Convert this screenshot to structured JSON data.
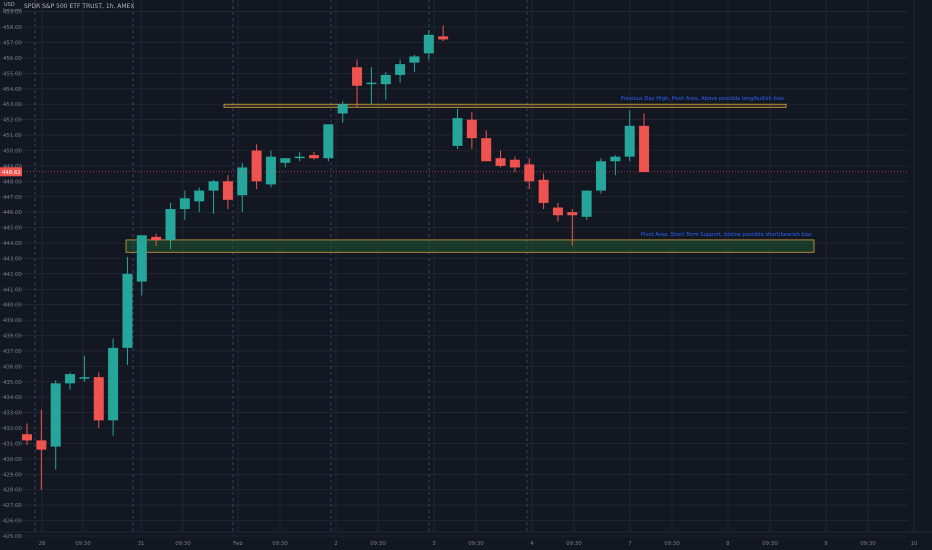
{
  "header": {
    "symbol_title": "SPDR S&P 500 ETF TRUST, 1h, AMEX",
    "currency": "USD",
    "currency_sub": "Not scaled"
  },
  "colors": {
    "background": "#131722",
    "up": "#26a69a",
    "down": "#ef5350",
    "grid": "#2a2e39",
    "session_line": "#3b4c7a",
    "axis_text": "#787b86",
    "zone_border": "#d4a53b",
    "zone_fill": "#1e5632",
    "annotation_text": "#2962ff",
    "price_line": "#ef5350"
  },
  "chart_data": {
    "type": "candlestick",
    "y_axis": {
      "range": [
        425.0,
        459.5
      ],
      "ticks": [
        "425.00",
        "426.00",
        "427.00",
        "428.00",
        "429.00",
        "430.00",
        "431.00",
        "432.00",
        "433.00",
        "434.00",
        "435.00",
        "436.00",
        "437.00",
        "438.00",
        "439.00",
        "440.00",
        "441.00",
        "442.00",
        "443.00",
        "444.00",
        "445.00",
        "446.00",
        "447.00",
        "448.00",
        "449.00",
        "450.00",
        "451.00",
        "452.00",
        "453.00",
        "454.00",
        "455.00",
        "456.00",
        "457.00",
        "458.00",
        "459.00"
      ]
    },
    "x_axis": {
      "ticks": [
        "28",
        "09:30",
        "31",
        "09:30",
        "Feb",
        "09:30",
        "2",
        "09:30",
        "3",
        "09:30",
        "4",
        "09:30",
        "7",
        "09:30",
        "8",
        "09:30",
        "9",
        "09:30",
        "10"
      ]
    },
    "session_breaks": [
      "28",
      "31",
      "Feb",
      "2",
      "3",
      "4"
    ],
    "candles": [
      {
        "o": 431.6,
        "h": 432.3,
        "l": 430.9,
        "c": 431.2
      },
      {
        "o": 431.2,
        "h": 433.2,
        "l": 428.0,
        "c": 430.6
      },
      {
        "o": 430.8,
        "h": 435.1,
        "l": 429.3,
        "c": 434.9
      },
      {
        "o": 434.9,
        "h": 435.6,
        "l": 434.5,
        "c": 435.5
      },
      {
        "o": 435.2,
        "h": 436.7,
        "l": 435.0,
        "c": 435.3
      },
      {
        "o": 435.3,
        "h": 435.6,
        "l": 432.0,
        "c": 432.5
      },
      {
        "o": 432.5,
        "h": 437.8,
        "l": 431.5,
        "c": 437.2
      },
      {
        "o": 437.2,
        "h": 443.1,
        "l": 436.1,
        "c": 442.0
      },
      {
        "o": 441.5,
        "h": 444.5,
        "l": 440.6,
        "c": 444.5
      },
      {
        "o": 444.4,
        "h": 444.6,
        "l": 443.8,
        "c": 444.2
      },
      {
        "o": 444.2,
        "h": 446.6,
        "l": 443.6,
        "c": 446.2
      },
      {
        "o": 446.2,
        "h": 447.4,
        "l": 445.5,
        "c": 446.9
      },
      {
        "o": 446.7,
        "h": 447.6,
        "l": 446.0,
        "c": 447.4
      },
      {
        "o": 447.4,
        "h": 448.1,
        "l": 445.9,
        "c": 448.0
      },
      {
        "o": 448.0,
        "h": 448.4,
        "l": 446.2,
        "c": 446.8
      },
      {
        "o": 447.1,
        "h": 449.2,
        "l": 446.0,
        "c": 448.9
      },
      {
        "o": 450.0,
        "h": 450.4,
        "l": 447.5,
        "c": 448.0
      },
      {
        "o": 447.8,
        "h": 450.0,
        "l": 447.6,
        "c": 449.6
      },
      {
        "o": 449.2,
        "h": 449.5,
        "l": 448.9,
        "c": 449.5
      },
      {
        "o": 449.6,
        "h": 449.9,
        "l": 449.3,
        "c": 449.6
      },
      {
        "o": 449.7,
        "h": 449.9,
        "l": 449.4,
        "c": 449.5
      },
      {
        "o": 449.5,
        "h": 451.6,
        "l": 449.3,
        "c": 451.7
      },
      {
        "o": 452.4,
        "h": 453.2,
        "l": 451.8,
        "c": 453.0
      },
      {
        "o": 455.4,
        "h": 455.9,
        "l": 452.8,
        "c": 454.2
      },
      {
        "o": 454.3,
        "h": 455.4,
        "l": 453.0,
        "c": 454.4
      },
      {
        "o": 454.3,
        "h": 455.1,
        "l": 453.3,
        "c": 454.9
      },
      {
        "o": 454.9,
        "h": 455.9,
        "l": 454.4,
        "c": 455.6
      },
      {
        "o": 455.7,
        "h": 456.2,
        "l": 455.1,
        "c": 456.1
      },
      {
        "o": 456.3,
        "h": 457.8,
        "l": 455.9,
        "c": 457.5
      },
      {
        "o": 457.4,
        "h": 458.1,
        "l": 457.1,
        "c": 457.2
      },
      {
        "o": 450.3,
        "h": 452.7,
        "l": 450.1,
        "c": 452.1
      },
      {
        "o": 452.0,
        "h": 452.5,
        "l": 450.1,
        "c": 450.8
      },
      {
        "o": 450.8,
        "h": 451.3,
        "l": 449.5,
        "c": 449.3
      },
      {
        "o": 449.5,
        "h": 450.0,
        "l": 448.9,
        "c": 449.0
      },
      {
        "o": 449.4,
        "h": 449.6,
        "l": 448.6,
        "c": 448.9
      },
      {
        "o": 449.1,
        "h": 449.5,
        "l": 447.5,
        "c": 448.0
      },
      {
        "o": 448.1,
        "h": 448.5,
        "l": 446.2,
        "c": 446.6
      },
      {
        "o": 446.3,
        "h": 446.6,
        "l": 445.4,
        "c": 445.8
      },
      {
        "o": 446.0,
        "h": 446.2,
        "l": 443.8,
        "c": 445.8
      },
      {
        "o": 445.7,
        "h": 447.3,
        "l": 445.5,
        "c": 447.4
      },
      {
        "o": 447.4,
        "h": 449.5,
        "l": 447.2,
        "c": 449.3
      },
      {
        "o": 449.3,
        "h": 449.7,
        "l": 448.4,
        "c": 449.6
      },
      {
        "o": 449.6,
        "h": 452.6,
        "l": 449.3,
        "c": 451.6
      },
      {
        "o": 451.6,
        "h": 452.4,
        "l": 448.6,
        "c": 448.6
      }
    ],
    "zones": [
      {
        "label": "Previous Day High, Pivot Area, Above possible long/bullish bias",
        "top": 453.0,
        "bottom": 452.8,
        "start_candle": 22,
        "end_label_anchor": "right"
      },
      {
        "label": "Pivot Area, Short Term Support, blelow possible short/bearish bias",
        "top": 444.2,
        "bottom": 443.4,
        "start_candle": 7,
        "end_label_anchor": "right"
      }
    ],
    "last_price": "448.62",
    "grid": true
  }
}
